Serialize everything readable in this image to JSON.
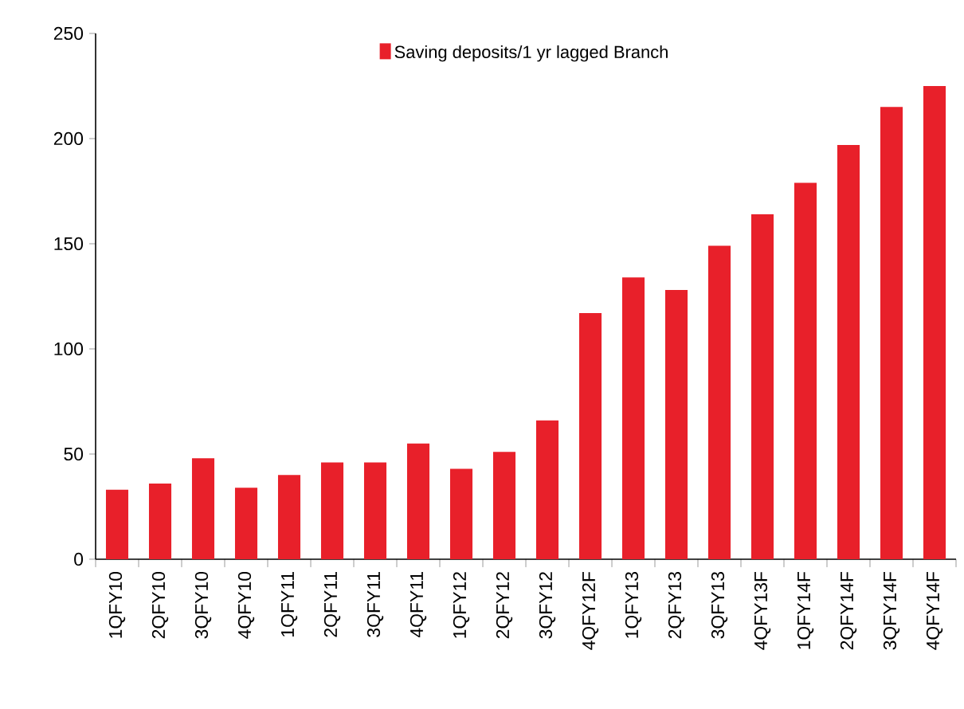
{
  "chart_data": {
    "type": "bar",
    "categories": [
      "1QFY10",
      "2QFY10",
      "3QFY10",
      "4QFY10",
      "1QFY11",
      "2QFY11",
      "3QFY11",
      "4QFY11",
      "1QFY12",
      "2QFY12",
      "3QFY12",
      "4QFY12F",
      "1QFY13",
      "2QFY13",
      "3QFY13",
      "4QFY13F",
      "1QFY14F",
      "2QFY14F",
      "3QFY14F",
      "4QFY14F"
    ],
    "series": [
      {
        "name": "Saving deposits/1 yr lagged Branch",
        "color": "#e8202a",
        "values": [
          33,
          36,
          48,
          34,
          40,
          46,
          46,
          55,
          43,
          51,
          66,
          117,
          134,
          128,
          149,
          164,
          179,
          197,
          215,
          225
        ]
      }
    ],
    "ylim": [
      0,
      250
    ],
    "yticks": [
      0,
      50,
      100,
      150,
      200,
      250
    ],
    "legend": "top",
    "grid": false
  }
}
